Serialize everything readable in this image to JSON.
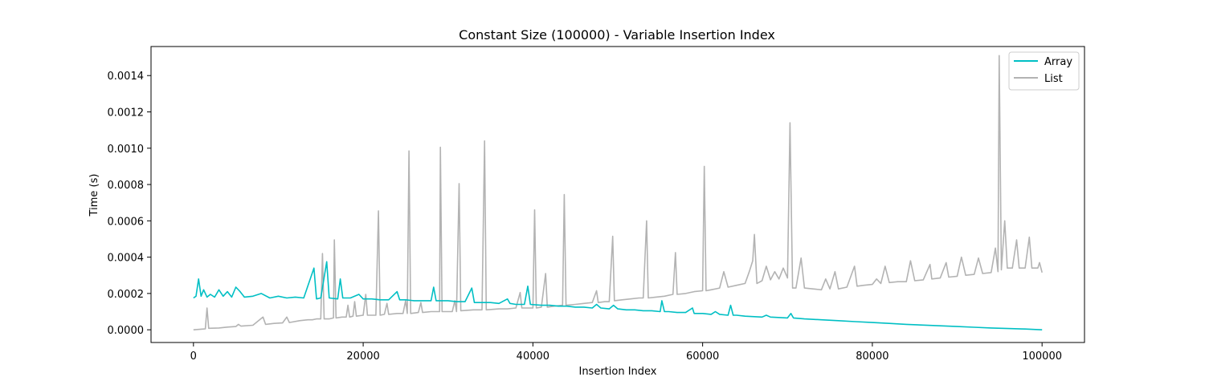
{
  "chart_data": {
    "type": "line",
    "title": "Constant Size (100000) - Variable Insertion Index",
    "xlabel": "Insertion Index",
    "ylabel": "Time (s)",
    "xlim": [
      -5000,
      105000
    ],
    "ylim": [
      -7e-05,
      0.00156
    ],
    "x_ticks": [
      0,
      20000,
      40000,
      60000,
      80000,
      100000
    ],
    "x_tick_labels": [
      "0",
      "20000",
      "40000",
      "60000",
      "80000",
      "100000"
    ],
    "y_ticks": [
      0.0,
      0.0002,
      0.0004,
      0.0006,
      0.0008,
      0.001,
      0.0012,
      0.0014
    ],
    "y_tick_labels": [
      "0.0000",
      "0.0002",
      "0.0004",
      "0.0006",
      "0.0008",
      "0.0010",
      "0.0012",
      "0.0014"
    ],
    "grid": false,
    "legend_position": "top-right",
    "series": [
      {
        "name": "Array",
        "color": "#00bfc4",
        "points": [
          [
            0,
            0.000175
          ],
          [
            300,
            0.000185
          ],
          [
            600,
            0.00028
          ],
          [
            900,
            0.000185
          ],
          [
            1200,
            0.00022
          ],
          [
            1600,
            0.00018
          ],
          [
            2000,
            0.000195
          ],
          [
            2500,
            0.00018
          ],
          [
            3000,
            0.00022
          ],
          [
            3500,
            0.000185
          ],
          [
            4000,
            0.00021
          ],
          [
            4500,
            0.00018
          ],
          [
            5000,
            0.000235
          ],
          [
            5500,
            0.00021
          ],
          [
            6000,
            0.00018
          ],
          [
            7000,
            0.000185
          ],
          [
            8000,
            0.0002
          ],
          [
            9000,
            0.000175
          ],
          [
            10000,
            0.000185
          ],
          [
            11000,
            0.000175
          ],
          [
            12000,
            0.00018
          ],
          [
            13000,
            0.000175
          ],
          [
            14200,
            0.00034
          ],
          [
            14500,
            0.00017
          ],
          [
            15000,
            0.000175
          ],
          [
            15700,
            0.000375
          ],
          [
            16000,
            0.000175
          ],
          [
            17000,
            0.00017
          ],
          [
            17300,
            0.00028
          ],
          [
            17600,
            0.000175
          ],
          [
            18500,
            0.000175
          ],
          [
            19500,
            0.000195
          ],
          [
            20000,
            0.00017
          ],
          [
            21000,
            0.00017
          ],
          [
            22000,
            0.000165
          ],
          [
            23000,
            0.000165
          ],
          [
            24000,
            0.00021
          ],
          [
            24300,
            0.000165
          ],
          [
            25000,
            0.000165
          ],
          [
            26000,
            0.00016
          ],
          [
            27000,
            0.00016
          ],
          [
            28000,
            0.00016
          ],
          [
            28300,
            0.000235
          ],
          [
            28600,
            0.00016
          ],
          [
            30000,
            0.00016
          ],
          [
            31000,
            0.000155
          ],
          [
            32000,
            0.000155
          ],
          [
            32800,
            0.00023
          ],
          [
            33100,
            0.00015
          ],
          [
            34000,
            0.00015
          ],
          [
            35000,
            0.00015
          ],
          [
            36000,
            0.000145
          ],
          [
            37000,
            0.00017
          ],
          [
            37300,
            0.000145
          ],
          [
            38000,
            0.00014
          ],
          [
            39000,
            0.00014
          ],
          [
            39400,
            0.00024
          ],
          [
            39700,
            0.00014
          ],
          [
            41000,
            0.000135
          ],
          [
            42000,
            0.000135
          ],
          [
            43000,
            0.00013
          ],
          [
            44000,
            0.00013
          ],
          [
            45000,
            0.000125
          ],
          [
            46000,
            0.000125
          ],
          [
            47000,
            0.00012
          ],
          [
            47500,
            0.00014
          ],
          [
            48000,
            0.00012
          ],
          [
            49000,
            0.000115
          ],
          [
            49500,
            0.000135
          ],
          [
            50000,
            0.000115
          ],
          [
            51000,
            0.00011
          ],
          [
            52000,
            0.00011
          ],
          [
            53000,
            0.000105
          ],
          [
            54000,
            0.000105
          ],
          [
            55000,
            0.0001
          ],
          [
            55200,
            0.00016
          ],
          [
            55500,
            0.0001
          ],
          [
            56000,
            0.0001
          ],
          [
            57000,
            9.5e-05
          ],
          [
            58000,
            9.5e-05
          ],
          [
            58800,
            0.00012
          ],
          [
            59000,
            9e-05
          ],
          [
            60000,
            9e-05
          ],
          [
            61000,
            8.5e-05
          ],
          [
            61500,
            0.0001
          ],
          [
            62000,
            8.5e-05
          ],
          [
            63000,
            8e-05
          ],
          [
            63300,
            0.000135
          ],
          [
            63600,
            8e-05
          ],
          [
            64000,
            8e-05
          ],
          [
            65000,
            7.5e-05
          ],
          [
            67000,
            7e-05
          ],
          [
            67500,
            8e-05
          ],
          [
            68000,
            7e-05
          ],
          [
            70000,
            6.5e-05
          ],
          [
            70400,
            9e-05
          ],
          [
            70700,
            6.5e-05
          ],
          [
            72000,
            6e-05
          ],
          [
            74000,
            5.5e-05
          ],
          [
            76000,
            5e-05
          ],
          [
            78000,
            4.5e-05
          ],
          [
            80000,
            4e-05
          ],
          [
            82000,
            3.5e-05
          ],
          [
            84000,
            3e-05
          ],
          [
            86000,
            2.6e-05
          ],
          [
            88000,
            2.2e-05
          ],
          [
            90000,
            1.8e-05
          ],
          [
            92000,
            1.4e-05
          ],
          [
            94000,
            1e-05
          ],
          [
            96000,
            7e-06
          ],
          [
            98000,
            4e-06
          ],
          [
            100000,
            0.0
          ]
        ]
      },
      {
        "name": "List",
        "color": "#b3b3b3",
        "points": [
          [
            0,
            0.0
          ],
          [
            1400,
            5e-06
          ],
          [
            1600,
            0.00012
          ],
          [
            1800,
            8e-06
          ],
          [
            3000,
            1e-05
          ],
          [
            4000,
            1.5e-05
          ],
          [
            5000,
            1.8e-05
          ],
          [
            5300,
            3e-05
          ],
          [
            5600,
            2e-05
          ],
          [
            7000,
            2.5e-05
          ],
          [
            8200,
            7e-05
          ],
          [
            8500,
            3e-05
          ],
          [
            9500,
            3.5e-05
          ],
          [
            10500,
            3.8e-05
          ],
          [
            11000,
            7e-05
          ],
          [
            11300,
            4e-05
          ],
          [
            12500,
            5e-05
          ],
          [
            13500,
            5.5e-05
          ],
          [
            14000,
            5.5e-05
          ],
          [
            14500,
            6e-05
          ],
          [
            15000,
            6e-05
          ],
          [
            15200,
            0.00042
          ],
          [
            15400,
            6e-05
          ],
          [
            16000,
            6e-05
          ],
          [
            16500,
            6.5e-05
          ],
          [
            16600,
            0.000495
          ],
          [
            16800,
            6.5e-05
          ],
          [
            17500,
            7e-05
          ],
          [
            18000,
            7e-05
          ],
          [
            18200,
            0.000135
          ],
          [
            18400,
            7e-05
          ],
          [
            18800,
            7.5e-05
          ],
          [
            19000,
            0.000155
          ],
          [
            19200,
            7.5e-05
          ],
          [
            20000,
            8e-05
          ],
          [
            20300,
            0.000195
          ],
          [
            20500,
            8e-05
          ],
          [
            21500,
            8e-05
          ],
          [
            21800,
            0.000655
          ],
          [
            22000,
            8e-05
          ],
          [
            22500,
            8.5e-05
          ],
          [
            22800,
            0.000145
          ],
          [
            23000,
            8.5e-05
          ],
          [
            24000,
            9e-05
          ],
          [
            24700,
            9e-05
          ],
          [
            25000,
            0.00016
          ],
          [
            25200,
            9e-05
          ],
          [
            25400,
            0.000985
          ],
          [
            25600,
            9e-05
          ],
          [
            26500,
            9.5e-05
          ],
          [
            26800,
            0.00015
          ],
          [
            27000,
            9.5e-05
          ],
          [
            28000,
            0.0001
          ],
          [
            29000,
            0.0001
          ],
          [
            29100,
            0.001005
          ],
          [
            29300,
            0.0001
          ],
          [
            30500,
            0.0001
          ],
          [
            30800,
            0.00016
          ],
          [
            31000,
            0.0001
          ],
          [
            31300,
            0.000805
          ],
          [
            31500,
            0.000105
          ],
          [
            33000,
            0.00011
          ],
          [
            34000,
            0.00011
          ],
          [
            34300,
            0.00104
          ],
          [
            34500,
            0.00011
          ],
          [
            36000,
            0.000115
          ],
          [
            37000,
            0.000115
          ],
          [
            38000,
            0.00012
          ],
          [
            38500,
            0.000205
          ],
          [
            38700,
            0.00012
          ],
          [
            39000,
            0.00012
          ],
          [
            40000,
            0.00012
          ],
          [
            40200,
            0.00066
          ],
          [
            40400,
            0.00012
          ],
          [
            41000,
            0.000125
          ],
          [
            41500,
            0.00031
          ],
          [
            41700,
            0.000125
          ],
          [
            42500,
            0.00013
          ],
          [
            43500,
            0.000135
          ],
          [
            43700,
            0.000745
          ],
          [
            43900,
            0.000135
          ],
          [
            45000,
            0.00014
          ],
          [
            46000,
            0.000145
          ],
          [
            47000,
            0.00015
          ],
          [
            47500,
            0.000215
          ],
          [
            47700,
            0.00015
          ],
          [
            48500,
            0.000155
          ],
          [
            49000,
            0.000155
          ],
          [
            49400,
            0.000515
          ],
          [
            49600,
            0.00016
          ],
          [
            50500,
            0.000165
          ],
          [
            51500,
            0.00017
          ],
          [
            52500,
            0.000175
          ],
          [
            53000,
            0.000175
          ],
          [
            53400,
            0.0006
          ],
          [
            53600,
            0.000175
          ],
          [
            54500,
            0.00018
          ],
          [
            55500,
            0.000185
          ],
          [
            56500,
            0.000195
          ],
          [
            56800,
            0.000425
          ],
          [
            57000,
            0.000195
          ],
          [
            58000,
            0.0002
          ],
          [
            59000,
            0.00021
          ],
          [
            60000,
            0.000215
          ],
          [
            60200,
            0.0009
          ],
          [
            60400,
            0.000215
          ],
          [
            61000,
            0.00022
          ],
          [
            62000,
            0.00023
          ],
          [
            62500,
            0.00032
          ],
          [
            63000,
            0.000235
          ],
          [
            64000,
            0.000245
          ],
          [
            65000,
            0.000255
          ],
          [
            65500,
            0.00032
          ],
          [
            65900,
            0.00038
          ],
          [
            66100,
            0.000525
          ],
          [
            66400,
            0.000255
          ],
          [
            67000,
            0.00027
          ],
          [
            67500,
            0.00035
          ],
          [
            68000,
            0.000275
          ],
          [
            68500,
            0.00032
          ],
          [
            69000,
            0.00028
          ],
          [
            69500,
            0.00034
          ],
          [
            70000,
            0.000285
          ],
          [
            70300,
            0.00114
          ],
          [
            70600,
            0.00023
          ],
          [
            71000,
            0.00023
          ],
          [
            71600,
            0.000395
          ],
          [
            72000,
            0.00023
          ],
          [
            73000,
            0.000225
          ],
          [
            74000,
            0.00022
          ],
          [
            74500,
            0.00028
          ],
          [
            75000,
            0.000225
          ],
          [
            75600,
            0.00032
          ],
          [
            76000,
            0.000225
          ],
          [
            77000,
            0.000235
          ],
          [
            77900,
            0.00035
          ],
          [
            78200,
            0.00024
          ],
          [
            79000,
            0.000245
          ],
          [
            80000,
            0.00025
          ],
          [
            80500,
            0.00028
          ],
          [
            81000,
            0.000255
          ],
          [
            81500,
            0.00035
          ],
          [
            82000,
            0.00026
          ],
          [
            83000,
            0.000265
          ],
          [
            84000,
            0.000265
          ],
          [
            84500,
            0.00038
          ],
          [
            85000,
            0.00027
          ],
          [
            86000,
            0.000275
          ],
          [
            86800,
            0.00036
          ],
          [
            87000,
            0.00028
          ],
          [
            88000,
            0.000285
          ],
          [
            88700,
            0.00037
          ],
          [
            89000,
            0.00029
          ],
          [
            90000,
            0.000295
          ],
          [
            90500,
            0.0004
          ],
          [
            91000,
            0.0003
          ],
          [
            92000,
            0.000305
          ],
          [
            92500,
            0.000395
          ],
          [
            93000,
            0.00031
          ],
          [
            94000,
            0.000315
          ],
          [
            94500,
            0.00045
          ],
          [
            94800,
            0.00032
          ],
          [
            94950,
            0.00151
          ],
          [
            95200,
            0.00033
          ],
          [
            95600,
            0.0006
          ],
          [
            95900,
            0.00034
          ],
          [
            96500,
            0.00034
          ],
          [
            97000,
            0.000495
          ],
          [
            97300,
            0.00034
          ],
          [
            98000,
            0.00034
          ],
          [
            98500,
            0.00051
          ],
          [
            98800,
            0.00034
          ],
          [
            99500,
            0.00034
          ],
          [
            99700,
            0.00037
          ],
          [
            100000,
            0.000315
          ]
        ]
      }
    ]
  }
}
